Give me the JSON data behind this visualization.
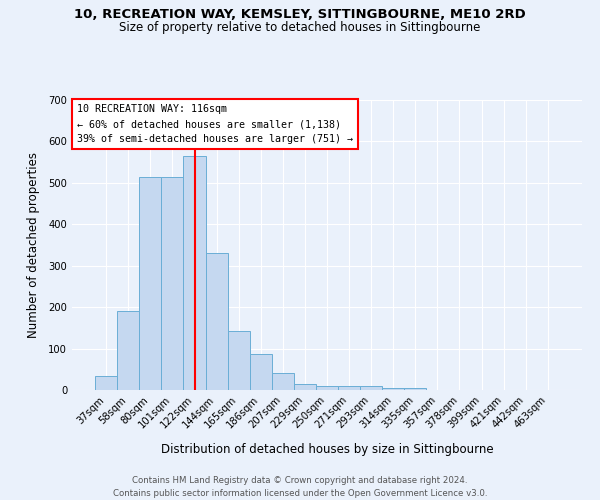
{
  "title1": "10, RECREATION WAY, KEMSLEY, SITTINGBOURNE, ME10 2RD",
  "title2": "Size of property relative to detached houses in Sittingbourne",
  "xlabel": "Distribution of detached houses by size in Sittingbourne",
  "ylabel": "Number of detached properties",
  "categories": [
    "37sqm",
    "58sqm",
    "80sqm",
    "101sqm",
    "122sqm",
    "144sqm",
    "165sqm",
    "186sqm",
    "207sqm",
    "229sqm",
    "250sqm",
    "271sqm",
    "293sqm",
    "314sqm",
    "335sqm",
    "357sqm",
    "378sqm",
    "399sqm",
    "421sqm",
    "442sqm",
    "463sqm"
  ],
  "values": [
    33,
    190,
    515,
    515,
    565,
    330,
    143,
    87,
    42,
    14,
    10,
    10,
    10,
    5,
    5,
    0,
    0,
    0,
    0,
    0,
    0
  ],
  "bar_color": "#c5d8f0",
  "bar_edge_color": "#6aaed6",
  "red_line_index": 4,
  "annotation_title": "10 RECREATION WAY: 116sqm",
  "annotation_line1": "← 60% of detached houses are smaller (1,138)",
  "annotation_line2": "39% of semi-detached houses are larger (751) →",
  "footer1": "Contains HM Land Registry data © Crown copyright and database right 2024.",
  "footer2": "Contains public sector information licensed under the Open Government Licence v3.0.",
  "background_color": "#eaf1fb",
  "plot_background": "#eaf1fb",
  "ylim": [
    0,
    700
  ],
  "yticks": [
    0,
    100,
    200,
    300,
    400,
    500,
    600,
    700
  ]
}
